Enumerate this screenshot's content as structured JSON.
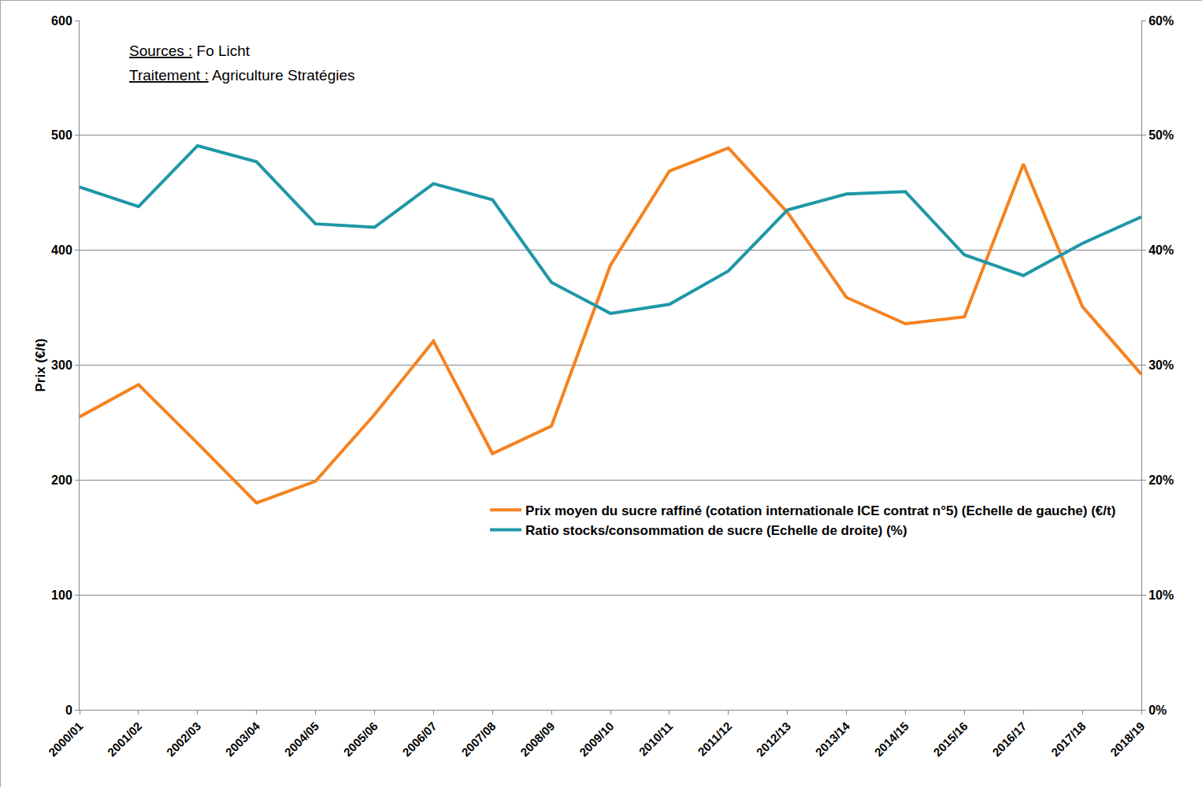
{
  "chart_data": {
    "type": "line",
    "annotations": [
      {
        "label": "Sources :",
        "text": "Fo Licht"
      },
      {
        "label": "Traitement :",
        "text": "Agriculture Stratégies"
      }
    ],
    "y_label": "Prix (€/t)",
    "categories": [
      "2000/01",
      "2001/02",
      "2002/03",
      "2003/04",
      "2004/05",
      "2005/06",
      "2006/07",
      "2007/08",
      "2008/09",
      "2009/10",
      "2010/11",
      "2011/12",
      "2012/13",
      "2013/14",
      "2014/15",
      "2015/16",
      "2016/17",
      "2017/18",
      "2018/19"
    ],
    "series": [
      {
        "name": "Prix moyen du sucre raffiné (cotation internationale ICE contrat n°5) (Echelle de gauche) (€/t)",
        "color": "#f58220",
        "values": [
          255,
          283,
          232,
          180,
          199,
          257,
          321,
          223,
          247,
          387,
          469,
          489,
          433,
          359,
          336,
          342,
          475,
          351,
          292
        ]
      },
      {
        "name": "Ratio stocks/consommation de sucre (Echelle de droite) (%)",
        "color": "#1f97a7",
        "axis": "y2",
        "values": [
          45.5,
          43.8,
          49.1,
          47.7,
          42.3,
          42.0,
          45.8,
          44.4,
          37.2,
          34.5,
          35.3,
          38.2,
          43.5,
          44.9,
          45.1,
          39.6,
          37.8,
          40.6,
          42.9
        ]
      }
    ],
    "ylim": [
      0,
      600
    ],
    "yticks": [
      0,
      100,
      200,
      300,
      400,
      500,
      600
    ],
    "y2lim": [
      0,
      60
    ],
    "y2ticks": [
      {
        "value": 0,
        "label": "0%"
      },
      {
        "value": 10,
        "label": "10%"
      },
      {
        "value": 20,
        "label": "20%"
      },
      {
        "value": 30,
        "label": "30%"
      },
      {
        "value": 40,
        "label": "40%"
      },
      {
        "value": 50,
        "label": "50%"
      },
      {
        "value": 60,
        "label": "60%"
      }
    ],
    "grid": true,
    "legend": "lower right"
  }
}
